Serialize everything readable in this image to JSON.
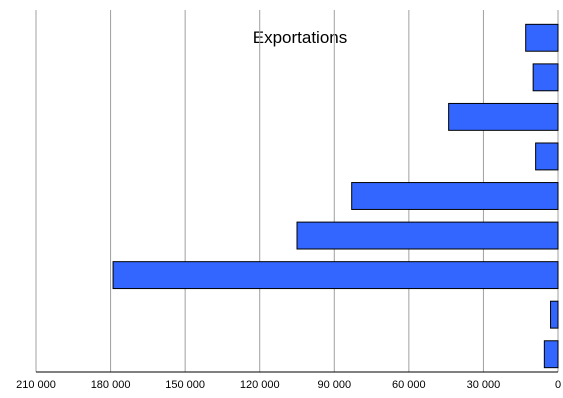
{
  "chart_data": {
    "type": "bar",
    "orientation": "horizontal",
    "x_direction": "reversed",
    "title": "Exportations",
    "xlim": [
      0,
      210000
    ],
    "x_ticks": [
      0,
      30000,
      60000,
      90000,
      120000,
      150000,
      180000,
      210000
    ],
    "x_tick_labels": [
      "0",
      "30 000",
      "60 000",
      "90 000",
      "120 000",
      "150 000",
      "180 000",
      "210 000"
    ],
    "grid": "vertical",
    "bar_color": "#3366ff",
    "bar_outline": "#000000",
    "values": [
      13000,
      10000,
      44000,
      9000,
      83000,
      105000,
      179000,
      3000,
      5500
    ]
  }
}
